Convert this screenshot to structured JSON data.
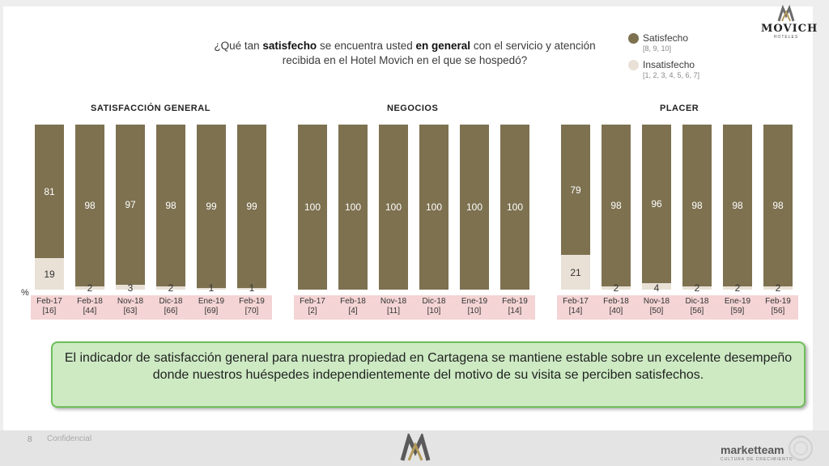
{
  "question": {
    "pre1": "¿Qué tan ",
    "bold1": "satisfecho",
    "mid": " se encuentra usted ",
    "bold2": "en general",
    "post": " con el servicio y atención recibida en el Hotel Movich en el que se hospedó?"
  },
  "legend": {
    "satisfied": {
      "label": "Satisfecho",
      "scale": "[8, 9, 10]",
      "color": "#7d7150"
    },
    "dissatisfied": {
      "label": "Insatisfecho",
      "scale": "[1, 2, 3, 4, 5, 6, 7]",
      "color": "#e9e1d6"
    }
  },
  "logo": {
    "name": "MOVICH",
    "sub": "HOTELES"
  },
  "percent_label": "%",
  "chart_data": [
    {
      "type": "bar",
      "title": "SATISFACCIÓN GENERAL",
      "stacked": true,
      "ylim": [
        0,
        100
      ],
      "categories": [
        "Feb-17",
        "Feb-18",
        "Nov-18",
        "Dic-18",
        "Ene-19",
        "Feb-19"
      ],
      "bases": [
        "[16]",
        "[44]",
        "[63]",
        "[66]",
        "[69]",
        "[70]"
      ],
      "series": [
        {
          "name": "Satisfecho",
          "values": [
            81,
            98,
            97,
            98,
            99,
            99
          ]
        },
        {
          "name": "Insatisfecho",
          "values": [
            19,
            2,
            3,
            2,
            1,
            1
          ]
        }
      ]
    },
    {
      "type": "bar",
      "title": "NEGOCIOS",
      "stacked": true,
      "ylim": [
        0,
        100
      ],
      "categories": [
        "Feb-17",
        "Feb-18",
        "Nov-18",
        "Dic-18",
        "Ene-19",
        "Feb-19"
      ],
      "bases": [
        "[2]",
        "[4]",
        "[11]",
        "[10]",
        "[10]",
        "[14]"
      ],
      "series": [
        {
          "name": "Satisfecho",
          "values": [
            100,
            100,
            100,
            100,
            100,
            100
          ]
        },
        {
          "name": "Insatisfecho",
          "values": [
            0,
            0,
            0,
            0,
            0,
            0
          ]
        }
      ]
    },
    {
      "type": "bar",
      "title": "PLACER",
      "stacked": true,
      "ylim": [
        0,
        100
      ],
      "categories": [
        "Feb-17",
        "Feb-18",
        "Nov-18",
        "Dic-18",
        "Ene-19",
        "Feb-19"
      ],
      "bases": [
        "[14]",
        "[40]",
        "[50]",
        "[56]",
        "[59]",
        "[56]"
      ],
      "series": [
        {
          "name": "Satisfecho",
          "values": [
            79,
            98,
            96,
            98,
            98,
            98
          ]
        },
        {
          "name": "Insatisfecho",
          "values": [
            21,
            2,
            4,
            2,
            2,
            2
          ]
        }
      ]
    }
  ],
  "summary": "El indicador de satisfacción general para nuestra propiedad en Cartagena se mantiene estable sobre un excelente desempeño donde nuestros huéspedes independientemente del motivo de su visita se perciben satisfechos.",
  "footer": {
    "page_number": "8",
    "confidential": "Confidencial",
    "brand": "marketteam",
    "brand_sub": "CULTURA DE CRECIMIENTO"
  }
}
